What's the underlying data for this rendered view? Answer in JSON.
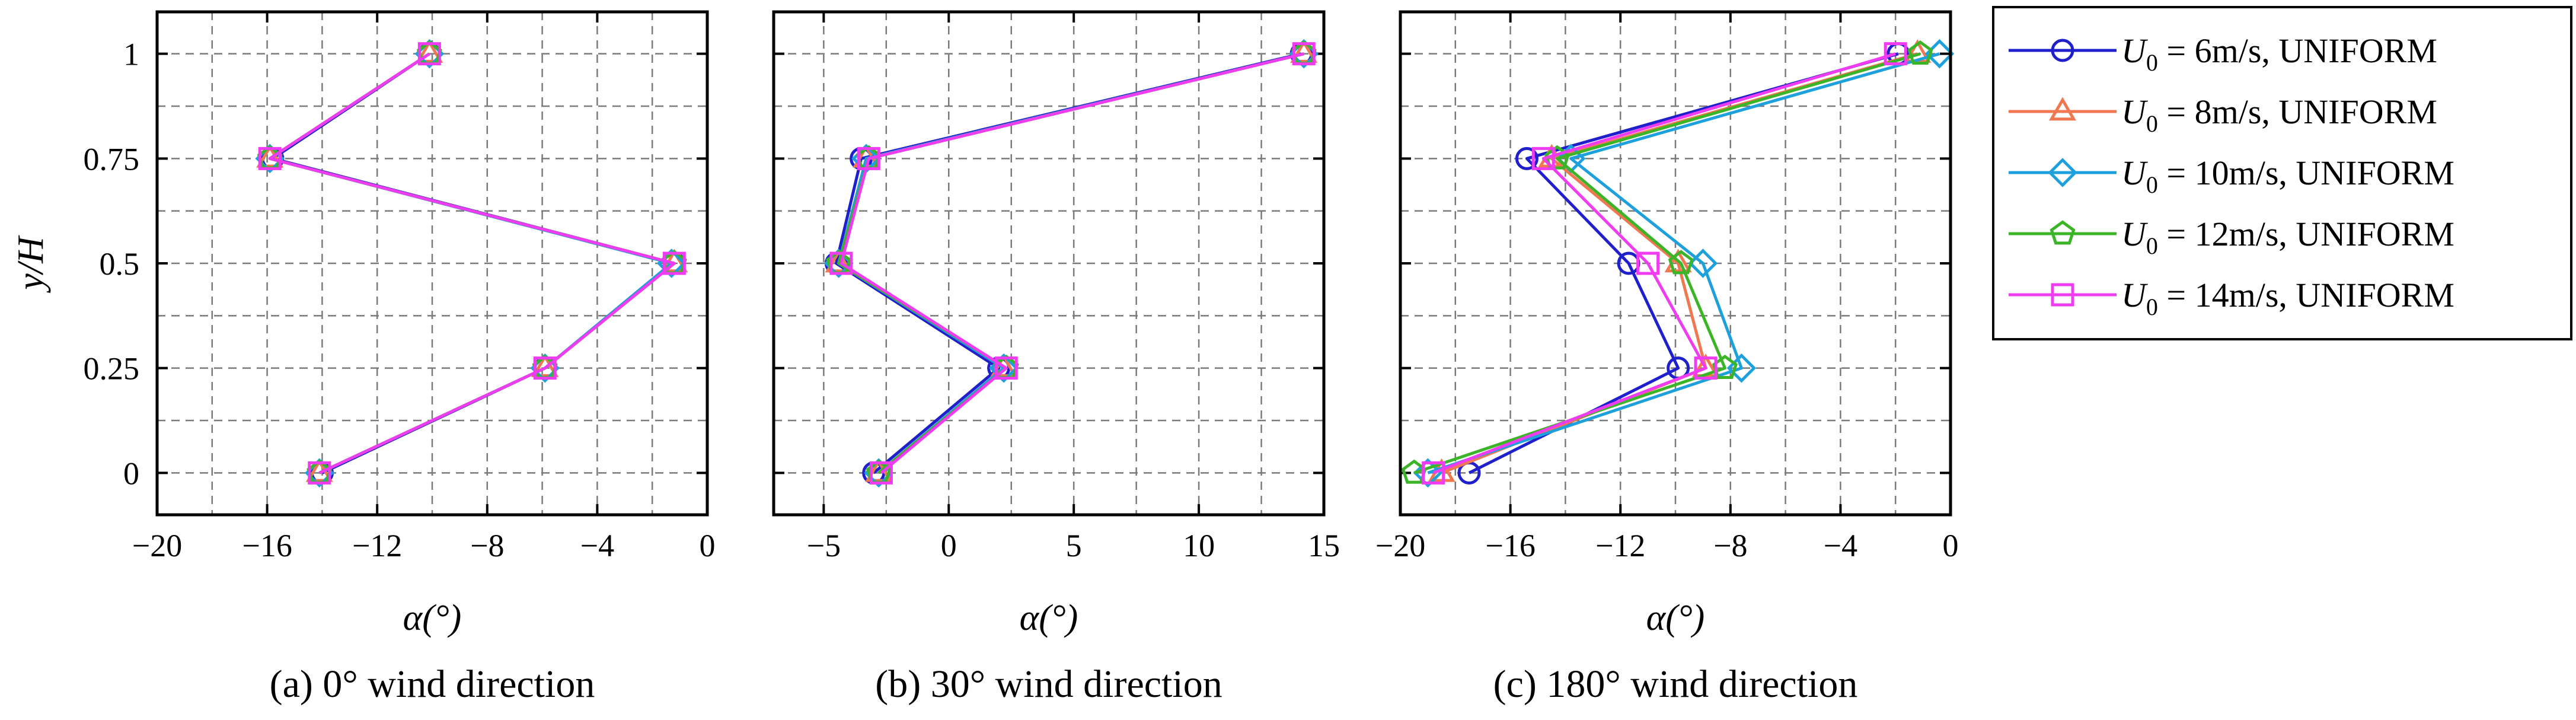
{
  "chart_data": [
    {
      "type": "line",
      "title": "(a) 0° wind direction",
      "xlabel": "α(°)",
      "ylabel": "y/H",
      "xlim": [
        -20,
        0
      ],
      "ylim": [
        -0.1,
        1.1
      ],
      "xticks": [
        -20,
        -16,
        -12,
        -8,
        -4,
        0
      ],
      "xtick_labels": [
        "−20",
        "−16",
        "−12",
        "−8",
        "−4",
        "0"
      ],
      "xminor": [
        -18,
        -14,
        -10,
        -6,
        -2
      ],
      "yticks": [
        0,
        0.25,
        0.5,
        0.75,
        1
      ],
      "ytick_labels": [
        "0",
        "0.25",
        "0.5",
        "0.75",
        "1"
      ],
      "yminor": [
        0.125,
        0.375,
        0.625,
        0.875
      ],
      "y": [
        0,
        0.25,
        0.5,
        0.75,
        1
      ],
      "series": [
        {
          "name": "U0 = 6m/s, UNIFORM",
          "x": [
            -14.0,
            -5.9,
            -1.2,
            -15.8,
            -10.1
          ]
        },
        {
          "name": "U0 = 8m/s, UNIFORM",
          "x": [
            -14.1,
            -5.9,
            -1.2,
            -15.9,
            -10.1
          ]
        },
        {
          "name": "U0 = 10m/s, UNIFORM",
          "x": [
            -14.1,
            -5.9,
            -1.3,
            -15.9,
            -10.1
          ]
        },
        {
          "name": "U0 = 12m/s, UNIFORM",
          "x": [
            -14.1,
            -5.9,
            -1.2,
            -15.9,
            -10.1
          ]
        },
        {
          "name": "U0 = 14m/s, UNIFORM",
          "x": [
            -14.1,
            -5.9,
            -1.2,
            -15.9,
            -10.1
          ]
        }
      ]
    },
    {
      "type": "line",
      "title": "(b) 30° wind direction",
      "xlabel": "α(°)",
      "ylabel": "",
      "xlim": [
        -7,
        15
      ],
      "ylim": [
        -0.1,
        1.1
      ],
      "xticks": [
        -5,
        0,
        5,
        10,
        15
      ],
      "xtick_labels": [
        "−5",
        "0",
        "5",
        "10",
        "15"
      ],
      "xminor": [
        -2.5,
        2.5,
        7.5,
        12.5
      ],
      "yticks": [
        0,
        0.25,
        0.5,
        0.75,
        1
      ],
      "ytick_labels": [],
      "yminor": [
        0.125,
        0.375,
        0.625,
        0.875
      ],
      "y": [
        0,
        0.25,
        0.5,
        0.75,
        1
      ],
      "series": [
        {
          "name": "U0 = 6m/s, UNIFORM",
          "x": [
            -3.0,
            2.0,
            -4.5,
            -3.5,
            14.1
          ]
        },
        {
          "name": "U0 = 8m/s, UNIFORM",
          "x": [
            -2.8,
            2.2,
            -4.4,
            -3.3,
            14.2
          ]
        },
        {
          "name": "U0 = 10m/s, UNIFORM",
          "x": [
            -2.8,
            2.2,
            -4.4,
            -3.3,
            14.2
          ]
        },
        {
          "name": "U0 = 12m/s, UNIFORM",
          "x": [
            -2.8,
            2.3,
            -4.4,
            -3.2,
            14.2
          ]
        },
        {
          "name": "U0 = 14m/s, UNIFORM",
          "x": [
            -2.7,
            2.3,
            -4.3,
            -3.2,
            14.2
          ]
        }
      ]
    },
    {
      "type": "line",
      "title": "(c) 180° wind direction",
      "xlabel": "α(°)",
      "ylabel": "",
      "xlim": [
        -20,
        0
      ],
      "ylim": [
        -0.1,
        1.1
      ],
      "xticks": [
        -20,
        -16,
        -12,
        -8,
        -4,
        0
      ],
      "xtick_labels": [
        "−20",
        "−16",
        "−12",
        "−8",
        "−4",
        "0"
      ],
      "xminor": [
        -18,
        -14,
        -10,
        -6,
        -2
      ],
      "yticks": [
        0,
        0.25,
        0.5,
        0.75,
        1
      ],
      "ytick_labels": [],
      "yminor": [
        0.125,
        0.375,
        0.625,
        0.875
      ],
      "y": [
        0,
        0.25,
        0.5,
        0.75,
        1
      ],
      "series": [
        {
          "name": "U0 = 6m/s, UNIFORM",
          "x": [
            -17.5,
            -9.9,
            -11.7,
            -15.4,
            -1.9
          ]
        },
        {
          "name": "U0 = 8m/s, UNIFORM",
          "x": [
            -18.5,
            -8.9,
            -9.9,
            -14.5,
            -1.2
          ]
        },
        {
          "name": "U0 = 10m/s, UNIFORM",
          "x": [
            -19.0,
            -7.6,
            -9.0,
            -13.8,
            -0.4
          ]
        },
        {
          "name": "U0 = 12m/s, UNIFORM",
          "x": [
            -19.5,
            -8.2,
            -9.8,
            -14.3,
            -1.1
          ]
        },
        {
          "name": "U0 = 14m/s, UNIFORM",
          "x": [
            -18.8,
            -8.9,
            -11.0,
            -14.8,
            -2.0
          ]
        }
      ]
    }
  ],
  "legend": {
    "placement": "right",
    "items": [
      {
        "series_index": 0,
        "subscript_label": "0",
        "label_main": "U",
        "label_rest": " = 6m/s, UNIFORM",
        "color": "#1f1fcc",
        "marker": "circle"
      },
      {
        "series_index": 1,
        "subscript_label": "0",
        "label_main": "U",
        "label_rest": " = 8m/s, UNIFORM",
        "color": "#f07850",
        "marker": "triangle"
      },
      {
        "series_index": 2,
        "subscript_label": "0",
        "label_main": "U",
        "label_rest": " = 10m/s, UNIFORM",
        "color": "#1ea0dc",
        "marker": "diamond"
      },
      {
        "series_index": 3,
        "subscript_label": "0",
        "label_main": "U",
        "label_rest": " = 12m/s, UNIFORM",
        "color": "#3cb428",
        "marker": "pentagon"
      },
      {
        "series_index": 4,
        "subscript_label": "0",
        "label_main": "U",
        "label_rest": " = 14m/s, UNIFORM",
        "color": "#f03cf0",
        "marker": "square"
      }
    ]
  }
}
